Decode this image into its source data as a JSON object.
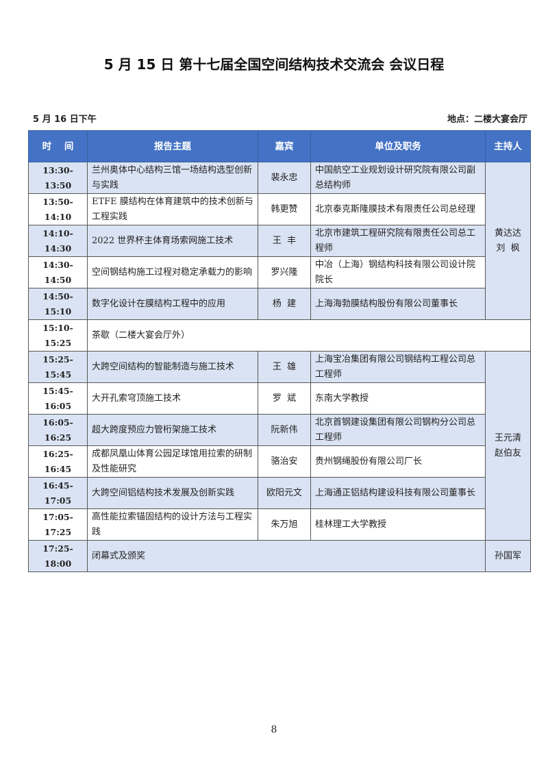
{
  "title": "5 月 15 日  第十七届全国空间结构技术交流会  会议日程",
  "session_date": "5 月 16 日下午",
  "venue": "地点：二楼大宴会厅",
  "colors": {
    "header": "#4472c4",
    "row_shade": "#dae3f3"
  },
  "headers": [
    "时    间",
    "报告主题",
    "嘉宾",
    "单位及职务",
    "主持人"
  ],
  "rows": [
    {
      "time": "13:30-13:50",
      "topic": "兰州奥体中心结构三馆一场结构选型创新与实践",
      "speaker": "裴永忠",
      "affiliation": "中国航空工业规划设计研究院有限公司副总结构师",
      "shade": true
    },
    {
      "time": "13:50-14:10",
      "topic": "ETFE 膜结构在体育建筑中的技术创新与工程实践",
      "speaker": "韩更赞",
      "affiliation": "北京泰克斯隆膜技术有限责任公司总经理",
      "shade": false
    },
    {
      "time": "14:10-14:30",
      "topic": "2022 世界杯主体育场索网施工技术",
      "speaker": "王  丰",
      "affiliation": "北京市建筑工程研究院有限责任公司总工程师",
      "shade": true
    },
    {
      "time": "14:30-14:50",
      "topic": "空间钢结构施工过程对稳定承载力的影响",
      "speaker": "罗兴隆",
      "affiliation": "中冶（上海）钢结构科技有限公司设计院院长",
      "shade": false
    },
    {
      "time": "14:50-15:10",
      "topic": "数字化设计在膜结构工程中的应用",
      "speaker": "杨  建",
      "affiliation": "上海海勃膜结构股份有限公司董事长",
      "shade": true
    },
    {
      "time": "15:10-15:25",
      "topic": "茶歇（二楼大宴会厅外）",
      "break": true,
      "shade": false
    },
    {
      "time": "15:25-15:45",
      "topic": "大跨空间结构的智能制造与施工技术",
      "speaker": "王  雄",
      "affiliation": "上海宝冶集团有限公司钢结构工程公司总工程师",
      "shade": true
    },
    {
      "time": "15:45-16:05",
      "topic": "大开孔索穹顶施工技术",
      "speaker": "罗  斌",
      "affiliation": "东南大学教授",
      "shade": false
    },
    {
      "time": "16:05-16:25",
      "topic": "超大跨度预应力管桁架施工技术",
      "speaker": "阮新伟",
      "affiliation": "北京首钢建设集团有限公司钢构分公司总工程师",
      "shade": true
    },
    {
      "time": "16:25-16:45",
      "topic": "成都凤凰山体育公园足球馆用拉索的研制及性能研究",
      "speaker": "骆治安",
      "affiliation": "贵州钢绳股份有限公司厂长",
      "shade": false
    },
    {
      "time": "16:45-17:05",
      "topic": "大跨空间铝结构技术发展及创新实践",
      "speaker": "欧阳元文",
      "affiliation": "上海通正铝结构建设科技有限公司董事长",
      "shade": true
    },
    {
      "time": "17:05-17:25",
      "topic": "高性能拉索锚固结构的设计方法与工程实践",
      "speaker": "朱万旭",
      "affiliation": "桂林理工大学教授",
      "shade": false
    },
    {
      "time": "17:25-18:00",
      "topic": "闭幕式及颁奖",
      "closing": true,
      "host": "孙国军",
      "shade": true
    }
  ],
  "hosts": [
    {
      "start": 0,
      "span": 5,
      "names": "黄达达\n刘  枫"
    },
    {
      "start": 6,
      "span": 6,
      "names": "王元清\n赵伯友"
    }
  ],
  "page_number": "8"
}
